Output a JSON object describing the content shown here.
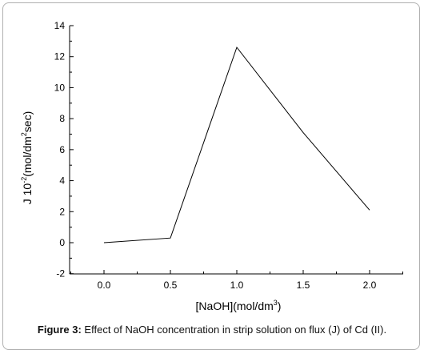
{
  "caption": {
    "label": "Figure 3:",
    "text": " Effect of NaOH concentration in strip solution on flux (J) of Cd (II)."
  },
  "chart_data": {
    "type": "line",
    "xlabel": "[NaOH](mol/dm",
    "xlabel_sup": "3",
    "xlabel_end": ")",
    "ylabel_pre": "J 10",
    "ylabel_sup1": "-2",
    "ylabel_mid": "(mol/dm",
    "ylabel_sup2": "2",
    "ylabel_end": "sec)",
    "xlim": [
      -0.25,
      2.25
    ],
    "ylim": [
      -2,
      14
    ],
    "x_ticks": [
      "0.0",
      "0.5",
      "1.0",
      "1.5",
      "2.0"
    ],
    "y_ticks": [
      "-2",
      "0",
      "2",
      "4",
      "6",
      "8",
      "10",
      "12",
      "14"
    ],
    "grid": false,
    "series": [
      {
        "x": [
          0.0,
          0.5,
          1.0,
          1.5,
          2.0
        ],
        "y": [
          0.0,
          0.3,
          12.6,
          7.1,
          2.1
        ]
      }
    ],
    "colors": {
      "line": "#000000",
      "axis": "#000000"
    }
  }
}
